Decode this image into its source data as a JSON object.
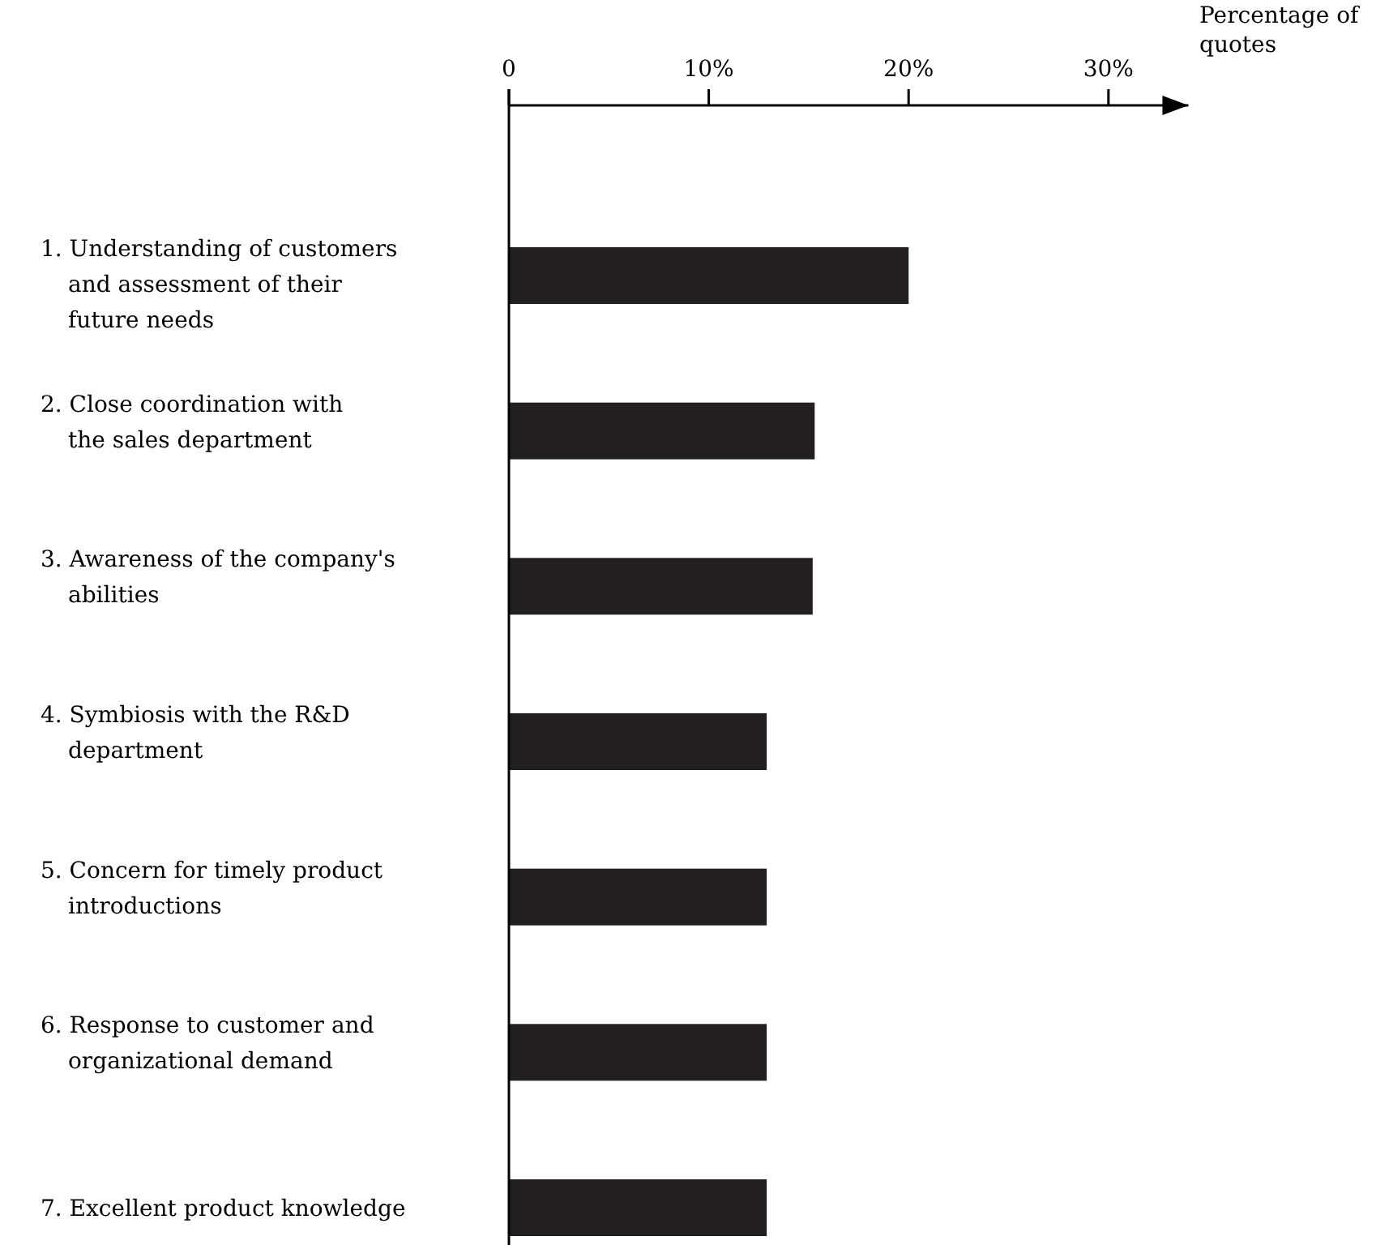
{
  "chart_data": {
    "type": "bar",
    "orientation": "horizontal",
    "xlabel": "Percentage of\nquotes",
    "categories": [
      "1. Understanding of customers\nand assessment of their\nfuture needs",
      "2. Close coordination with\nthe sales department",
      "3. Awareness of the company's\nabilities",
      "4. Symbiosis with the R&D\ndepartment",
      "5. Concern for timely product\nintroductions",
      "6. Response to customer and\norganizational demand",
      "7. Excellent product knowledge"
    ],
    "values": [
      20,
      15.3,
      15.2,
      12.9,
      12.9,
      12.9,
      12.9
    ],
    "color": "#231f20",
    "xlim": [
      0,
      34
    ],
    "xticks": [
      0,
      {
        "value": 10,
        "label": "10%"
      },
      {
        "value": 20,
        "label": "20%"
      },
      {
        "value": 30,
        "label": "30%"
      }
    ],
    "grid": false
  }
}
